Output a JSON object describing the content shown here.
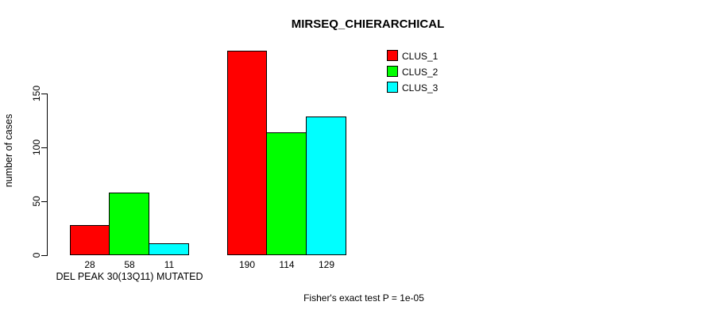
{
  "title": "MIRSEQ_CHIERARCHICAL",
  "footer": "Fisher's exact test P = 1e-05",
  "y_axis": {
    "label": "number of cases",
    "ticks": [
      0,
      50,
      100,
      150
    ]
  },
  "legend": [
    {
      "label": "CLUS_1",
      "color": "#FF0000"
    },
    {
      "label": "CLUS_2",
      "color": "#00FF00"
    },
    {
      "label": "CLUS_3",
      "color": "#00FFFF"
    }
  ],
  "chart_data": {
    "type": "bar",
    "title": "MIRSEQ_CHIERARCHICAL",
    "xlabel": "",
    "ylabel": "number of cases",
    "ylim": [
      0,
      150
    ],
    "grid": false,
    "legend_position": "top-right",
    "series": [
      "CLUS_1",
      "CLUS_2",
      "CLUS_3"
    ],
    "colors": [
      "#FF0000",
      "#00FF00",
      "#00FFFF"
    ],
    "groups": [
      {
        "label": "DEL PEAK 30(13Q11) MUTATED",
        "values": [
          28,
          58,
          11
        ]
      },
      {
        "label": "",
        "values": [
          190,
          114,
          129
        ]
      }
    ],
    "annotation": "Fisher's exact test P = 1e-05"
  }
}
